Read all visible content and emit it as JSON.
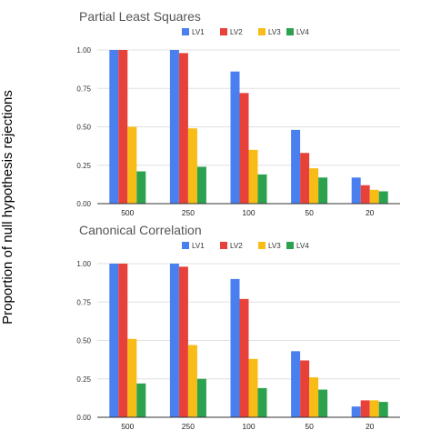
{
  "figure": {
    "ylabel": "Proportion of null hypothesis rejections"
  },
  "chart_data": [
    {
      "type": "bar",
      "title": "Partial Least Squares",
      "categories": [
        "500",
        "250",
        "100",
        "50",
        "20"
      ],
      "ylim": [
        0,
        1
      ],
      "yticks": [
        "0.00",
        "0.25",
        "0.50",
        "0.75",
        "1.00"
      ],
      "grid": true,
      "legend_position": "top-right",
      "series": [
        {
          "name": "LV1",
          "color": "#4A7FF0",
          "values": [
            1.0,
            1.0,
            0.86,
            0.48,
            0.17
          ]
        },
        {
          "name": "LV2",
          "color": "#E8413A",
          "values": [
            1.0,
            0.98,
            0.72,
            0.33,
            0.12
          ]
        },
        {
          "name": "LV3",
          "color": "#F8BC17",
          "values": [
            0.5,
            0.49,
            0.35,
            0.23,
            0.09
          ]
        },
        {
          "name": "LV4",
          "color": "#2CA24F",
          "values": [
            0.21,
            0.24,
            0.19,
            0.17,
            0.08
          ]
        }
      ]
    },
    {
      "type": "bar",
      "title": "Canonical Correlation",
      "categories": [
        "500",
        "250",
        "100",
        "50",
        "20"
      ],
      "ylim": [
        0,
        1
      ],
      "yticks": [
        "0.00",
        "0.25",
        "0.50",
        "0.75",
        "1.00"
      ],
      "grid": true,
      "legend_position": "top-right",
      "series": [
        {
          "name": "LV1",
          "color": "#4A7FF0",
          "values": [
            1.0,
            1.0,
            0.9,
            0.43,
            0.07
          ]
        },
        {
          "name": "LV2",
          "color": "#E8413A",
          "values": [
            1.0,
            0.98,
            0.77,
            0.37,
            0.11
          ]
        },
        {
          "name": "LV3",
          "color": "#F8BC17",
          "values": [
            0.51,
            0.47,
            0.38,
            0.26,
            0.11
          ]
        },
        {
          "name": "LV4",
          "color": "#2CA24F",
          "values": [
            0.22,
            0.25,
            0.19,
            0.18,
            0.1
          ]
        }
      ]
    }
  ]
}
